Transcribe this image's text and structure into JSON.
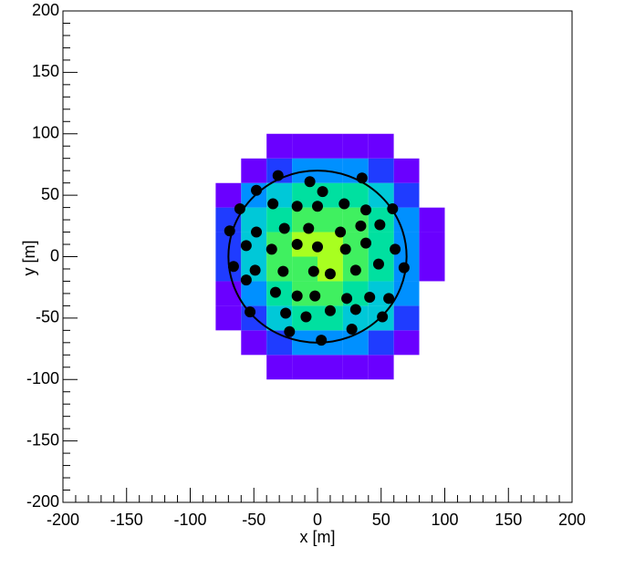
{
  "chart_data": {
    "type": "heatmap",
    "xlabel": "x [m]",
    "ylabel": "y [m]",
    "xlim": [
      -200,
      200
    ],
    "ylim": [
      -200,
      200
    ],
    "xticks": [
      -200,
      -150,
      -100,
      -50,
      0,
      50,
      100,
      150,
      200
    ],
    "yticks": [
      -200,
      -150,
      -100,
      -50,
      0,
      50,
      100,
      150,
      200
    ],
    "x_edges": [
      -100,
      -80,
      -60,
      -40,
      -20,
      0,
      20,
      40,
      60,
      80,
      100
    ],
    "y_edges": [
      -100,
      -80,
      -60,
      -40,
      -20,
      0,
      20,
      40,
      60,
      80,
      100
    ],
    "values": [
      [
        0,
        0,
        0,
        1,
        1,
        1,
        1,
        1,
        0,
        0
      ],
      [
        0,
        0,
        1,
        2,
        3,
        3,
        3,
        2,
        1,
        0
      ],
      [
        0,
        1,
        2,
        4,
        5,
        5,
        4,
        4,
        2,
        0
      ],
      [
        0,
        1,
        3,
        5,
        6,
        6,
        5,
        4,
        3,
        0
      ],
      [
        0,
        2,
        4,
        6,
        6,
        7,
        6,
        5,
        3,
        1
      ],
      [
        0,
        2,
        4,
        6,
        7,
        7,
        6,
        5,
        3,
        1
      ],
      [
        0,
        2,
        4,
        5,
        6,
        6,
        6,
        5,
        3,
        1
      ],
      [
        0,
        1,
        3,
        4,
        5,
        5,
        5,
        4,
        2,
        0
      ],
      [
        0,
        0,
        1,
        2,
        3,
        3,
        3,
        2,
        1,
        0
      ],
      [
        0,
        0,
        0,
        1,
        1,
        1,
        1,
        1,
        0,
        0
      ]
    ],
    "zlim": [
      0,
      7
    ],
    "palette": [
      "#ffffff",
      "#6a00ff",
      "#1f3cff",
      "#0090ff",
      "#00c8d8",
      "#00e0a0",
      "#40f060",
      "#a8ff20"
    ],
    "circle": {
      "center": [
        0,
        0
      ],
      "radius": 70,
      "color": "#000000"
    },
    "points": {
      "color": "#000000",
      "x": [
        -31,
        35,
        -48,
        -6,
        4,
        -61,
        -35,
        -16,
        0,
        21,
        59,
        -69,
        -48,
        -26,
        -7,
        18,
        34,
        49,
        38,
        -56,
        -36,
        -16,
        0,
        22,
        38,
        61,
        -66,
        -49,
        -27,
        -3,
        10,
        30,
        48,
        68,
        -56,
        -33,
        -16,
        -2,
        23,
        41,
        56,
        -53,
        -25,
        -9,
        10,
        30,
        51,
        -22,
        3,
        27
      ],
      "y": [
        66,
        64,
        54,
        61,
        53,
        39,
        43,
        41,
        41,
        43,
        39,
        21,
        20,
        23,
        23,
        20,
        25,
        26,
        38,
        9,
        6,
        10,
        8,
        6,
        11,
        6,
        -8,
        -11,
        -12,
        -12,
        -14,
        -11,
        -6,
        -9,
        -19,
        -29,
        -32,
        -32,
        -34,
        -33,
        -34,
        -45,
        -46,
        -49,
        -44,
        -43,
        -49,
        -61,
        -68,
        -59
      ]
    }
  }
}
